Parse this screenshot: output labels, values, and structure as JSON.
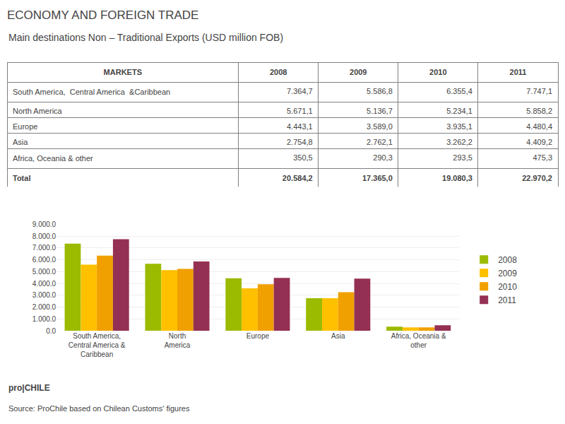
{
  "chart_data": {
    "type": "bar",
    "title": "ECONOMY AND FOREIGN TRADE",
    "subtitle": "Main destinations Non – Traditional Exports (USD million FOB)",
    "table": {
      "header": [
        "MARKETS",
        "2008",
        "2009",
        "2010",
        "2011"
      ],
      "rows": [
        [
          "South America,  Central America  &Caribbean",
          "7.364,7",
          "5.586,8",
          "6.355,4",
          "7.747,1"
        ],
        [
          "North America",
          "5.671,1",
          "5.136,7",
          "5.234,1",
          "5.858,2"
        ],
        [
          "Europe",
          "4.443,1",
          "3.589,0",
          "3.935,1",
          "4.480,4"
        ],
        [
          "Asia",
          "2.754,8",
          "2.762,1",
          "3.262,2",
          "4.409,2"
        ],
        [
          "Africa, Oceania & other",
          "350,5",
          "290,3",
          "293,5",
          "475,3"
        ],
        [
          "Total",
          "20.584,2",
          "17.365,0",
          "19.080,3",
          "22.970,2"
        ]
      ]
    },
    "categories": [
      "South America,\nCentral America &\nCaribbean",
      "North\nAmerica",
      "Europe",
      "Asia",
      "Africa, Oceania &\nother"
    ],
    "series": [
      {
        "name": "2008",
        "color": "#9bbb00",
        "values": [
          7364.7,
          5671.1,
          4443.1,
          2754.8,
          350.5
        ]
      },
      {
        "name": "2009",
        "color": "#ffc000",
        "values": [
          5586.8,
          5136.7,
          3589.0,
          2762.1,
          290.3
        ]
      },
      {
        "name": "2010",
        "color": "#f0a000",
        "values": [
          6355.4,
          5234.1,
          3935.1,
          3262.2,
          293.5
        ]
      },
      {
        "name": "2011",
        "color": "#943054",
        "values": [
          7747.1,
          5858.2,
          4480.4,
          4409.2,
          475.3
        ]
      }
    ],
    "ylim": [
      0,
      9000
    ],
    "yticks": [
      {
        "value": 0,
        "label": "0.0"
      },
      {
        "value": 1000,
        "label": "1.000.0"
      },
      {
        "value": 2000,
        "label": "2.000.0"
      },
      {
        "value": 3000,
        "label": "3.000.0"
      },
      {
        "value": 4000,
        "label": "4.000.0"
      },
      {
        "value": 5000,
        "label": "5.000.0"
      },
      {
        "value": 6000,
        "label": "6.000.0"
      },
      {
        "value": 7000,
        "label": "7.000.0"
      },
      {
        "value": 8000,
        "label": "8.000.0"
      },
      {
        "value": 9000,
        "label": "9.000.0"
      }
    ],
    "grid": true,
    "legend": "right",
    "annotations": [
      "pro|CHILE",
      "Source: ProChile based on Chilean Customs' figures"
    ]
  }
}
